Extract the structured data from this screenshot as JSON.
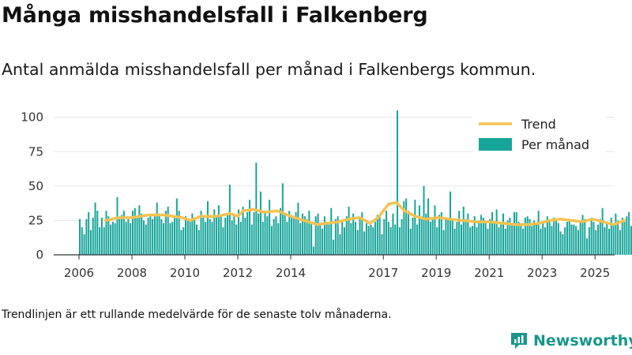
{
  "title": "Många misshandelsfall i Falkenberg",
  "subtitle": "Antal anmälda misshandelsfall per månad i Falkenbergs kommun.",
  "footnote": "Trendlinjen är ett rullande medelvärde för de senaste tolv månaderna.",
  "brand": {
    "name": "Newsworthy",
    "color": "#17968a"
  },
  "colors": {
    "bars": "#17a59a",
    "trend": "#f6c251",
    "axis": "#333333"
  },
  "chart_data": {
    "type": "bar",
    "x_start": "2006-01",
    "xticks": [
      "2006",
      "2008",
      "2010",
      "2012",
      "2014",
      "2017",
      "2019",
      "2021",
      "2023",
      "2025"
    ],
    "yticks": [
      0,
      25,
      50,
      75,
      100
    ],
    "ylim": [
      0,
      105
    ],
    "legend": {
      "position": "top-right",
      "entries": [
        {
          "name": "Trend",
          "kind": "line"
        },
        {
          "name": "Per månad",
          "kind": "bar"
        }
      ]
    },
    "series": [
      {
        "name": "Per månad",
        "type": "bar",
        "values": [
          26,
          20,
          15,
          26,
          31,
          18,
          27,
          38,
          32,
          20,
          27,
          20,
          32,
          28,
          22,
          24,
          23,
          42,
          26,
          29,
          32,
          24,
          26,
          23,
          32,
          34,
          27,
          36,
          30,
          25,
          22,
          27,
          30,
          26,
          28,
          38,
          30,
          26,
          23,
          32,
          35,
          23,
          24,
          28,
          41,
          32,
          18,
          20,
          28,
          25,
          24,
          30,
          26,
          22,
          18,
          32,
          28,
          24,
          39,
          26,
          24,
          33,
          28,
          36,
          29,
          20,
          27,
          30,
          51,
          25,
          28,
          22,
          33,
          24,
          35,
          27,
          31,
          40,
          22,
          31,
          67,
          30,
          46,
          24,
          32,
          28,
          40,
          21,
          26,
          28,
          23,
          34,
          52,
          30,
          24,
          32,
          29,
          27,
          31,
          38,
          23,
          30,
          28,
          26,
          32,
          24,
          6,
          28,
          30,
          22,
          19,
          28,
          24,
          22,
          34,
          11,
          26,
          28,
          15,
          24,
          20,
          28,
          35,
          23,
          30,
          24,
          18,
          27,
          31,
          17,
          23,
          21,
          22,
          20,
          24,
          29,
          28,
          15,
          26,
          32,
          24,
          20,
          30,
          22,
          105,
          20,
          26,
          39,
          41,
          32,
          19,
          27,
          40,
          22,
          36,
          28,
          50,
          30,
          41,
          24,
          27,
          36,
          20,
          29,
          31,
          18,
          27,
          26,
          46,
          25,
          19,
          24,
          32,
          22,
          35,
          26,
          30,
          20,
          21,
          28,
          20,
          23,
          29,
          27,
          25,
          19,
          26,
          31,
          24,
          33,
          20,
          24,
          30,
          19,
          25,
          27,
          22,
          31,
          31,
          24,
          23,
          19,
          27,
          28,
          26,
          21,
          25,
          22,
          32,
          19,
          24,
          20,
          28,
          25,
          21,
          27,
          26,
          23,
          17,
          15,
          20,
          24,
          26,
          22,
          22,
          21,
          18,
          25,
          29,
          26,
          12,
          20,
          27,
          24,
          18,
          22,
          26,
          34,
          20,
          24,
          19,
          27,
          22,
          30,
          25,
          18,
          27,
          24,
          28,
          31,
          21,
          26,
          24,
          33,
          20,
          26,
          28,
          24,
          30,
          22,
          26,
          29,
          18,
          25,
          20,
          26,
          29,
          17,
          27,
          24,
          31,
          21,
          32,
          22,
          18,
          28,
          27,
          23,
          38,
          24,
          26,
          29,
          41
        ]
      },
      {
        "name": "Trend",
        "type": "line",
        "values": [
          [
            2007.0,
            25
          ],
          [
            2007.5,
            27
          ],
          [
            2008.0,
            27
          ],
          [
            2008.6,
            29
          ],
          [
            2009.2,
            29
          ],
          [
            2009.9,
            27
          ],
          [
            2010.2,
            25
          ],
          [
            2010.6,
            28
          ],
          [
            2011.2,
            28
          ],
          [
            2011.7,
            30
          ],
          [
            2012.0,
            28
          ],
          [
            2012.2,
            32
          ],
          [
            2012.6,
            33
          ],
          [
            2013.0,
            31
          ],
          [
            2013.5,
            32
          ],
          [
            2014.0,
            28
          ],
          [
            2014.5,
            25
          ],
          [
            2015.0,
            22
          ],
          [
            2015.4,
            23
          ],
          [
            2015.8,
            24
          ],
          [
            2016.2,
            26
          ],
          [
            2016.6,
            27
          ],
          [
            2017.0,
            23
          ],
          [
            2017.3,
            27
          ],
          [
            2017.7,
            37
          ],
          [
            2018.0,
            38
          ],
          [
            2018.3,
            32
          ],
          [
            2018.7,
            28
          ],
          [
            2019.1,
            26
          ],
          [
            2019.6,
            27
          ],
          [
            2020.0,
            26
          ],
          [
            2020.5,
            25
          ],
          [
            2021.0,
            24
          ],
          [
            2021.5,
            24
          ],
          [
            2022.0,
            23
          ],
          [
            2022.5,
            22
          ],
          [
            2023.0,
            22
          ],
          [
            2023.4,
            23
          ],
          [
            2023.8,
            25
          ],
          [
            2024.2,
            26
          ],
          [
            2024.6,
            25
          ],
          [
            2025.0,
            24
          ],
          [
            2025.4,
            26
          ],
          [
            2025.8,
            24
          ],
          [
            2026.2,
            22
          ],
          [
            2026.6,
            25
          ]
        ]
      }
    ]
  }
}
